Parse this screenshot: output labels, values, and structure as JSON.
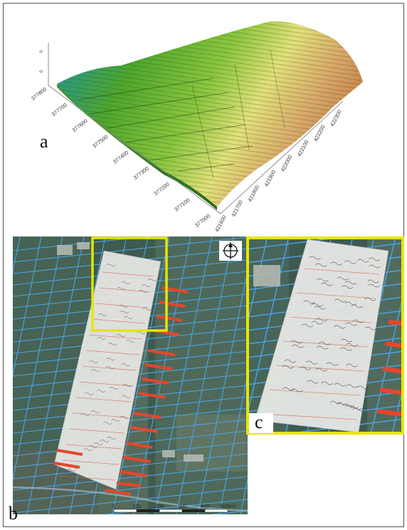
{
  "panels": {
    "a": {
      "label": "a"
    },
    "b": {
      "label": "b"
    },
    "c": {
      "label": "c"
    }
  },
  "axes": {
    "y_ticks": [
      "377800",
      "377700",
      "377600",
      "377500",
      "377400",
      "377300",
      "377200",
      "377100",
      "377000"
    ],
    "x_ticks": [
      "421600",
      "421700",
      "421800",
      "421900",
      "422000",
      "422100",
      "422200",
      "422300"
    ]
  },
  "scale_bar": {
    "ticks": [
      "0",
      "100",
      "200",
      "300",
      "400",
      "500(m)"
    ]
  },
  "colors": {
    "highlight_frame": "#e6e600",
    "parcel_lines": "#4aa3e8",
    "marker_red": "#e8452b",
    "overlay_sheet": "#e9e9e6"
  },
  "icons": {
    "north_arrow": "compass-cross-icon"
  }
}
